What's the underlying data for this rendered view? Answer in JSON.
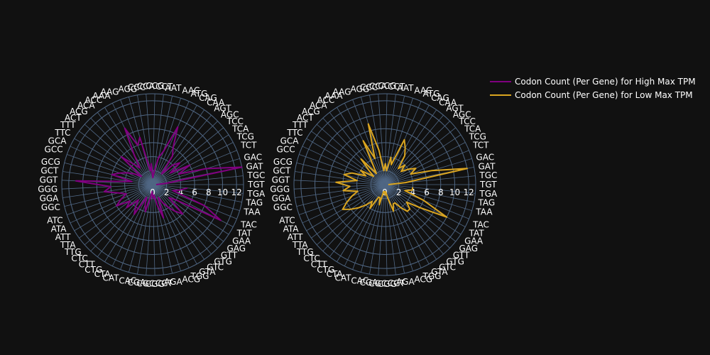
{
  "chart_data": [
    {
      "type": "polar-line",
      "series_name": "Codon Count (Per Gene) for High Max TPM",
      "color": "#800080",
      "radial_range": [
        0,
        13
      ],
      "radial_ticks": [
        0,
        2,
        4,
        6,
        8,
        10,
        12
      ],
      "angular_direction": "clockwise",
      "rotation_start": "east",
      "categories": [
        "TGT",
        "TGC",
        "GAT",
        "GAC",
        "TCT",
        "TCG",
        "TCA",
        "TCC",
        "AGC",
        "AGT",
        "CAA",
        "CAG",
        "ATG",
        "AAC",
        "AAT",
        "CCT",
        "CCG",
        "CCA",
        "CCC",
        "AGG",
        "AAG",
        "AAA",
        "ACC",
        "ACA",
        "ACG",
        "ACT",
        "TTT",
        "TTC",
        "GCA",
        "GCC",
        "GCG",
        "GCT",
        "GGT",
        "GGG",
        "GGA",
        "GGC",
        "ATC",
        "ATA",
        "ATT",
        "TTA",
        "TTG",
        "CTC",
        "CTT",
        "CTG",
        "CTA",
        "CAT",
        "CAC",
        "CGA",
        "CGC",
        "CGG",
        "CGT",
        "AGA",
        "ACG",
        "TGG",
        "GTA",
        "GTC",
        "GTG",
        "GTT",
        "GAG",
        "GAA",
        "TAT",
        "TAC",
        "TAA",
        "TAG",
        "TGA"
      ],
      "values": [
        0.5,
        2,
        13,
        8,
        4,
        6,
        3,
        5,
        4,
        2,
        5,
        6,
        9,
        5,
        4,
        2,
        1,
        3,
        2,
        7,
        6,
        9,
        5,
        3,
        4,
        6,
        2,
        3,
        4,
        5,
        6,
        3,
        11,
        6,
        7,
        5,
        4,
        5,
        6,
        4,
        5,
        3,
        4,
        5,
        2,
        3,
        4,
        2,
        1,
        2,
        1.5,
        3,
        5,
        2,
        3,
        4,
        5,
        6,
        3,
        4,
        11,
        8,
        3,
        4,
        5
      ]
    },
    {
      "type": "polar-line",
      "series_name": "Codon Count (Per Gene) for Low Max TPM",
      "color": "#DAA520",
      "radial_range": [
        0,
        13
      ],
      "radial_ticks": [
        0,
        2,
        4,
        6,
        8,
        10,
        12
      ],
      "angular_direction": "clockwise",
      "rotation_start": "east",
      "categories": [
        "TGT",
        "TGC",
        "GAT",
        "GAC",
        "TCT",
        "TCG",
        "TCA",
        "TCC",
        "AGC",
        "AGT",
        "CAA",
        "CAG",
        "ATG",
        "AAC",
        "AAT",
        "CCT",
        "CCG",
        "CCA",
        "CCC",
        "AGG",
        "AAG",
        "AAA",
        "ACC",
        "ACA",
        "ACG",
        "ACT",
        "TTT",
        "TTC",
        "GCA",
        "GCC",
        "GCG",
        "GCT",
        "GGT",
        "GGG",
        "GGA",
        "GGC",
        "ATC",
        "ATA",
        "ATT",
        "TTA",
        "TTG",
        "CTC",
        "CTT",
        "CTG",
        "CTA",
        "CAT",
        "CAC",
        "CGA",
        "CGC",
        "CGG",
        "CGT",
        "AGA",
        "ACG",
        "TGG",
        "GTA",
        "GTC",
        "GTG",
        "GTT",
        "GAG",
        "GAA",
        "TAT",
        "TAC",
        "TAA",
        "TAG",
        "TGA"
      ],
      "values": [
        0.5,
        3,
        12,
        7,
        4,
        5,
        4,
        3,
        4,
        3,
        5,
        6,
        7,
        3,
        4,
        2,
        3,
        2,
        5,
        9,
        4,
        7,
        3,
        2,
        5,
        3,
        2,
        4,
        3,
        5,
        6,
        4,
        7,
        5,
        6,
        4,
        5,
        6,
        7,
        6,
        5,
        4,
        3,
        4,
        2,
        2,
        3,
        1,
        1,
        1.5,
        1,
        2,
        4,
        3,
        3,
        4,
        5,
        5,
        4,
        6,
        10,
        6,
        3,
        4,
        4
      ]
    }
  ],
  "legend": {
    "items": [
      {
        "label": "Codon Count (Per Gene) for High Max TPM",
        "color": "#800080"
      },
      {
        "label": "Codon Count (Per Gene) for Low Max TPM",
        "color": "#DAA520"
      }
    ]
  },
  "style": {
    "background": "#111111",
    "polar_background": "#111111",
    "grid_color": "#506784",
    "center_glow": "#506784"
  }
}
